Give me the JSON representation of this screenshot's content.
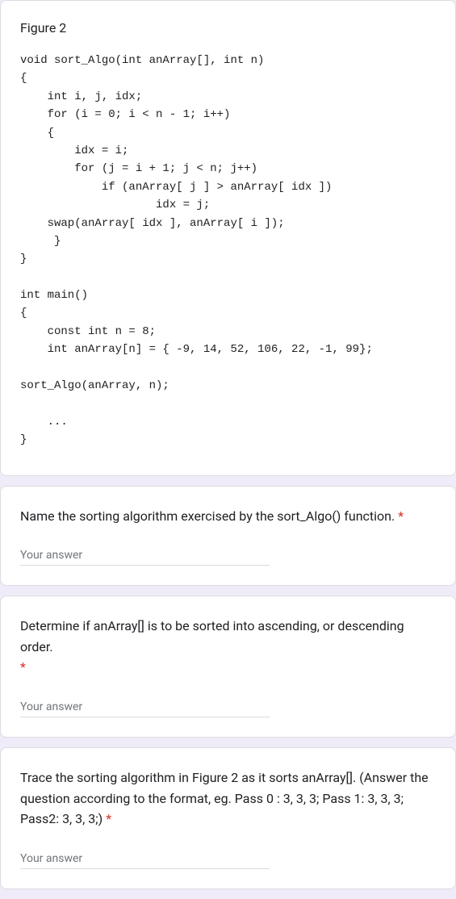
{
  "figure": {
    "title": "Figure 2",
    "code": "void sort_Algo(int anArray[], int n)\n{\n    int i, j, idx;\n    for (i = 0; i < n - 1; i++)\n    {\n        idx = i;\n        for (j = i + 1; j < n; j++)\n            if (anArray[ j ] > anArray[ idx ])\n                    idx = j;\n    swap(anArray[ idx ], anArray[ i ]);\n     }\n}\n\nint main()\n{\n    const int n = 8;\n    int anArray[n] = { -9, 14, 52, 106, 22, -1, 99};\n\nsort_Algo(anArray, n);\n\n    ...\n}"
  },
  "questions": {
    "q1": {
      "text": "Name the sorting algorithm exercised by the sort_Algo() function. ",
      "required": "*",
      "placeholder": "Your answer"
    },
    "q2": {
      "text": "Determine if anArray[] is to be sorted into ascending, or descending order. ",
      "required": "*",
      "placeholder": "Your answer"
    },
    "q3": {
      "text": "Trace the sorting algorithm in Figure 2 as it sorts anArray[]. (Answer the question according to the format, eg. Pass 0 : 3, 3, 3; Pass 1: 3, 3, 3; Pass2: 3, 3, 3;) ",
      "required": "*",
      "placeholder": "Your answer"
    }
  },
  "colors": {
    "background": "#f0ebf8",
    "card_bg": "#ffffff",
    "card_border": "#dadce0",
    "text": "#202124",
    "placeholder": "#70757a",
    "required": "#d93025",
    "focus": "#673ab7"
  }
}
